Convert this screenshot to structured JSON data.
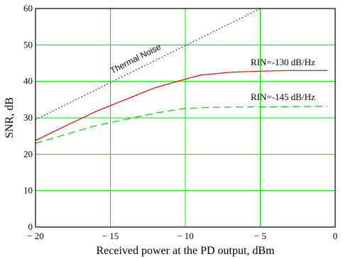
{
  "chart_data": {
    "type": "line",
    "xlabel": "Received power at the PD output, dBm",
    "ylabel": "SNR, dB",
    "xlim": [
      -20,
      0
    ],
    "ylim": [
      0,
      60
    ],
    "x_ticks": [
      -20,
      -15,
      -10,
      -5,
      0
    ],
    "x_tick_labels": [
      "− 20",
      "− 15",
      "− 10",
      "− 5",
      "0"
    ],
    "y_ticks": [
      0,
      10,
      20,
      30,
      40,
      50,
      60
    ],
    "y_tick_labels": [
      "0",
      "10",
      "20",
      "30",
      "40",
      "50",
      "60"
    ],
    "grid": true,
    "series": [
      {
        "name": "Thermal Noise",
        "color": "#0000cc",
        "style": "dotted",
        "x": [
          -20,
          -5
        ],
        "y": [
          29.5,
          60
        ]
      },
      {
        "name": "RIN=-130 dB/Hz",
        "color": "#e00000",
        "style": "solid",
        "x": [
          -20,
          -16,
          -12,
          -10,
          -9,
          -7,
          -5,
          -3,
          -0.5
        ],
        "y": [
          23.8,
          31.7,
          38.3,
          40.6,
          41.7,
          42.5,
          42.8,
          43.0,
          43.0
        ]
      },
      {
        "name": "RIN=-145 dB/Hz",
        "color": "#00cc00",
        "style": "dashed",
        "x": [
          -20,
          -16,
          -12,
          -10,
          -8,
          -5,
          -2,
          -0.5
        ],
        "y": [
          23.0,
          27.8,
          31.3,
          32.6,
          32.9,
          33.0,
          33.1,
          33.2
        ]
      }
    ],
    "annotations": {
      "thermal": "Thermal Noise",
      "rin130": "RIN=-130 dB/Hz",
      "rin145": "RIN=-145 dB/Hz"
    }
  }
}
